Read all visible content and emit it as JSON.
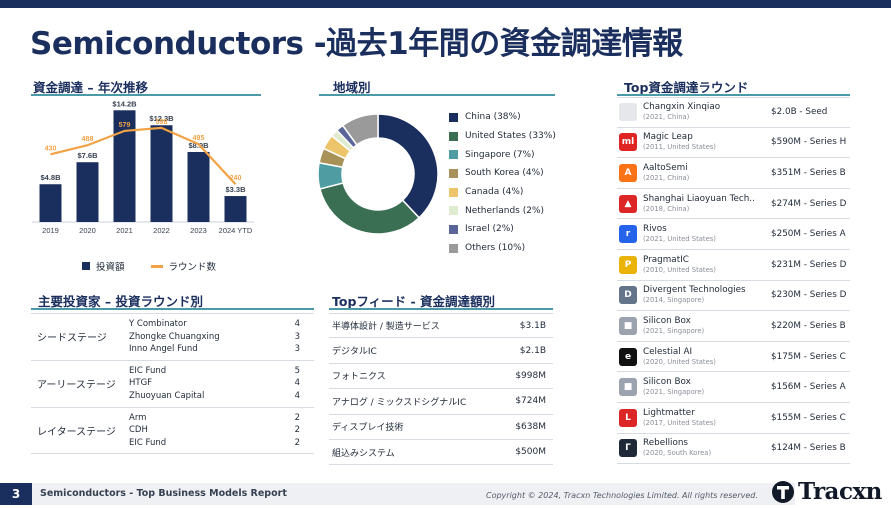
{
  "page": {
    "title": "Semiconductors -過去1年間の資金調達情報",
    "page_number": "3",
    "footer_text": "Semiconductors - Top Business Models Report",
    "copyright": "Copyright © 2024, Tracxn Technologies Limited. All rights reserved.",
    "brand": "Tracxn"
  },
  "annual": {
    "title": "資金調達 – 年次推移",
    "legend_investment": "投資額",
    "legend_rounds": "ラウンド数"
  },
  "chart_data": [
    {
      "type": "bar",
      "title": "資金調達 – 年次推移",
      "categories": [
        "2019",
        "2020",
        "2021",
        "2022",
        "2023",
        "2024 YTD"
      ],
      "series": [
        {
          "name": "投資額",
          "values": [
            4.8,
            7.6,
            14.2,
            12.3,
            8.9,
            3.3
          ],
          "labels": [
            "$4.8B",
            "$7.6B",
            "$14.2B",
            "$12.3B",
            "$8.9B",
            "$3.3B"
          ]
        },
        {
          "name": "ラウンド数",
          "values": [
            430,
            488,
            579,
            598,
            495,
            240
          ],
          "labels": [
            "430",
            "488",
            "579",
            "598",
            "495",
            "240"
          ]
        }
      ],
      "ylim_investment": [
        0,
        15
      ],
      "ylim_rounds": [
        0,
        750
      ]
    },
    {
      "type": "pie",
      "title": "地域別",
      "categories": [
        "China",
        "United States",
        "Singapore",
        "South Korea",
        "Canada",
        "Netherlands",
        "Israel",
        "Others"
      ],
      "values": [
        38,
        33,
        7,
        4,
        4,
        2,
        2,
        10
      ],
      "labels": [
        "China (38%)",
        "United States (33%)",
        "Singapore (7%)",
        "South Korea (4%)",
        "Canada (4%)",
        "Netherlands (2%)",
        "Israel (2%)",
        "Others (10%)"
      ],
      "colors": [
        "#1b2f5e",
        "#3b6f54",
        "#4f9da3",
        "#a89257",
        "#ecc56a",
        "#dfeccf",
        "#5a6699",
        "#9a9a9a"
      ]
    }
  ],
  "region": {
    "title": "地域別"
  },
  "investors": {
    "title": "主要投資家 – 投資ラウンド別",
    "groups": [
      {
        "stage": "シードステージ",
        "rows": [
          {
            "name": "Y Combinator",
            "count": "4"
          },
          {
            "name": "Zhongke Chuangxing",
            "count": "3"
          },
          {
            "name": "Inno Angel Fund",
            "count": "3"
          }
        ]
      },
      {
        "stage": "アーリーステージ",
        "rows": [
          {
            "name": "EIC Fund",
            "count": "5"
          },
          {
            "name": "HTGF",
            "count": "4"
          },
          {
            "name": "Zhuoyuan Capital",
            "count": "4"
          }
        ]
      },
      {
        "stage": "レイターステージ",
        "rows": [
          {
            "name": "Arm",
            "count": "2"
          },
          {
            "name": "CDH",
            "count": "2"
          },
          {
            "name": "EIC Fund",
            "count": "2"
          }
        ]
      }
    ]
  },
  "feeds": {
    "title": "Topフィード - 資金調達額別",
    "rows": [
      {
        "name": "半導体設計 / 製造サービス",
        "amount": "$3.1B"
      },
      {
        "name": "デジタルIC",
        "amount": "$2.1B"
      },
      {
        "name": "フォトニクス",
        "amount": "$998M"
      },
      {
        "name": "アナログ / ミックスドシグナルIC",
        "amount": "$724M"
      },
      {
        "name": "ディスプレイ技術",
        "amount": "$638M"
      },
      {
        "name": "組込みシステム",
        "amount": "$500M"
      }
    ]
  },
  "rounds": {
    "title": "Top資金調達ラウンド",
    "rows": [
      {
        "name": "Changxin Xinqiao",
        "meta": "(2021, China)",
        "amount": "$2.0B - Seed",
        "logo_icon": "changxin-logo",
        "logo_color": "#e5e7eb",
        "logo_text": ""
      },
      {
        "name": "Magic Leap",
        "meta": "(2011, United States)",
        "amount": "$590M - Series H",
        "logo_icon": "magic-leap-logo",
        "logo_color": "#e02424",
        "logo_text": "ml"
      },
      {
        "name": "AaltoSemi",
        "meta": "(2021, China)",
        "amount": "$351M - Series B",
        "logo_icon": "aaltosemi-logo",
        "logo_color": "#f97316",
        "logo_text": "A"
      },
      {
        "name": "Shanghai Liaoyuan Tech..",
        "meta": "(2018, China)",
        "amount": "$274M - Series D",
        "logo_icon": "liaoyuan-logo",
        "logo_color": "#dc2626",
        "logo_text": "▲"
      },
      {
        "name": "Rivos",
        "meta": "(2021, United States)",
        "amount": "$250M - Series A",
        "logo_icon": "rivos-logo",
        "logo_color": "#2563eb",
        "logo_text": "r"
      },
      {
        "name": "PragmatIC",
        "meta": "(2010, United States)",
        "amount": "$231M - Series D",
        "logo_icon": "pragmatic-logo",
        "logo_color": "#eab308",
        "logo_text": "P"
      },
      {
        "name": "Divergent Technologies",
        "meta": "(2014, Singapore)",
        "amount": "$230M - Series D",
        "logo_icon": "divergent-logo",
        "logo_color": "#64748b",
        "logo_text": "D"
      },
      {
        "name": "Silicon Box",
        "meta": "(2021, Singapore)",
        "amount": "$220M - Series B",
        "logo_icon": "silicon-box-logo",
        "logo_color": "#9ca3af",
        "logo_text": "■"
      },
      {
        "name": "Celestial AI",
        "meta": "(2020, United States)",
        "amount": "$175M - Series C",
        "logo_icon": "celestial-ai-logo",
        "logo_color": "#111111",
        "logo_text": "e"
      },
      {
        "name": "Silicon Box",
        "meta": "(2021, Singapore)",
        "amount": "$156M - Series A",
        "logo_icon": "silicon-box-logo",
        "logo_color": "#9ca3af",
        "logo_text": "■"
      },
      {
        "name": "Lightmatter",
        "meta": "(2017, United States)",
        "amount": "$155M - Series C",
        "logo_icon": "lightmatter-logo",
        "logo_color": "#dc2626",
        "logo_text": "L"
      },
      {
        "name": "Rebellions",
        "meta": "(2020, South Korea)",
        "amount": "$124M - Series B",
        "logo_icon": "rebellions-logo",
        "logo_color": "#1f2937",
        "logo_text": "Γ"
      }
    ]
  },
  "colors": {
    "navy": "#1b2f5e",
    "accent": "#4a9aa8",
    "rounds_line": "#f0a244"
  }
}
